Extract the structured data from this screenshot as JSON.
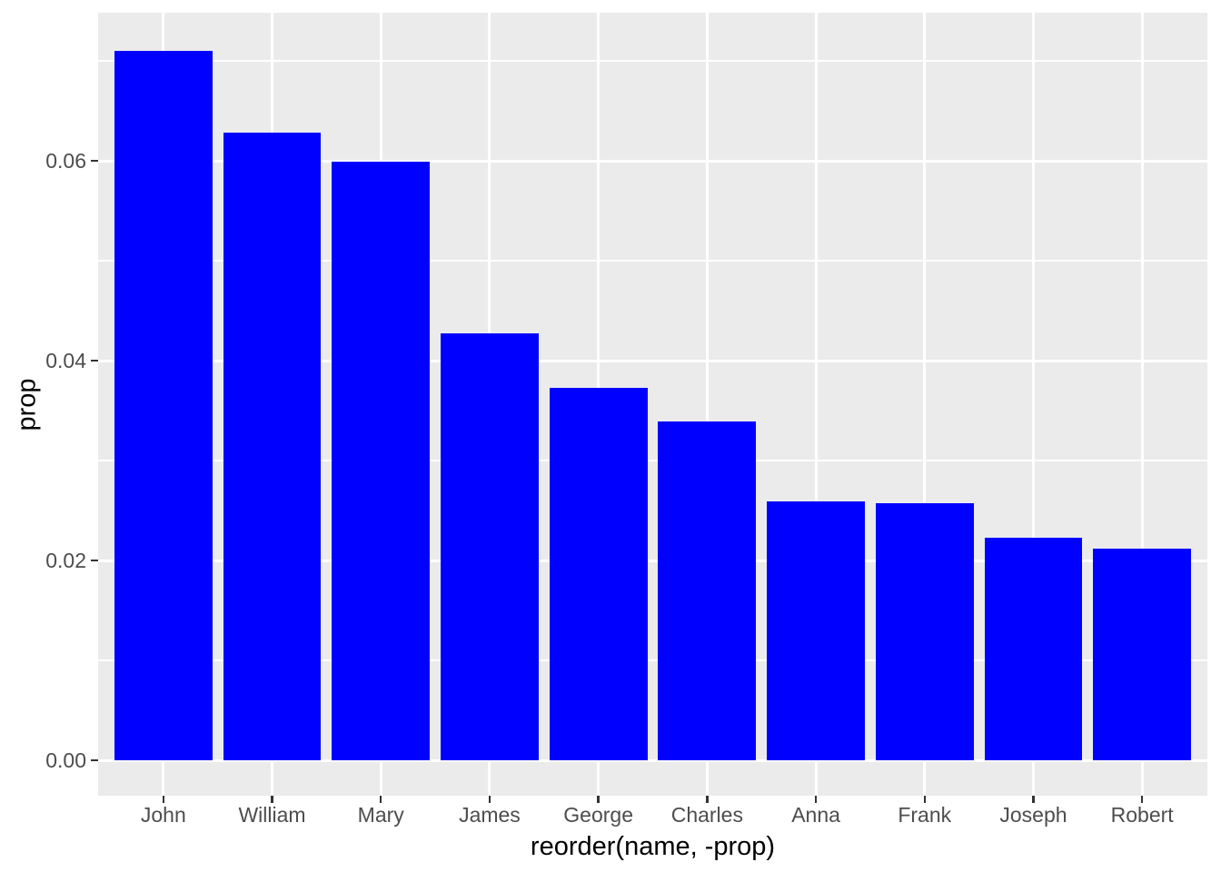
{
  "chart_data": {
    "type": "bar",
    "title": "",
    "xlabel": "reorder(name, -prop)",
    "ylabel": "prop",
    "categories": [
      "John",
      "William",
      "Mary",
      "James",
      "George",
      "Charles",
      "Anna",
      "Frank",
      "Joseph",
      "Robert"
    ],
    "values": [
      0.071,
      0.0628,
      0.0599,
      0.0427,
      0.0373,
      0.0339,
      0.0259,
      0.0257,
      0.0223,
      0.0212
    ],
    "y_major_breaks": [
      0.0,
      0.02,
      0.04,
      0.06
    ],
    "y_minor_breaks": [
      0.01,
      0.03,
      0.05,
      0.07
    ],
    "y_tick_labels": [
      "0.00",
      "0.02",
      "0.04",
      "0.06"
    ],
    "ylim": [
      -0.00355,
      0.0748
    ],
    "grid": true,
    "legend_position": "none",
    "colors": {
      "bar_fill": "#0000ff",
      "panel_background": "#ebebeb",
      "gridline": "#ffffff",
      "tick_label": "#4d4d4d",
      "axis_title": "#000000",
      "tick_mark": "#333333",
      "plot_background": "#ffffff"
    }
  }
}
